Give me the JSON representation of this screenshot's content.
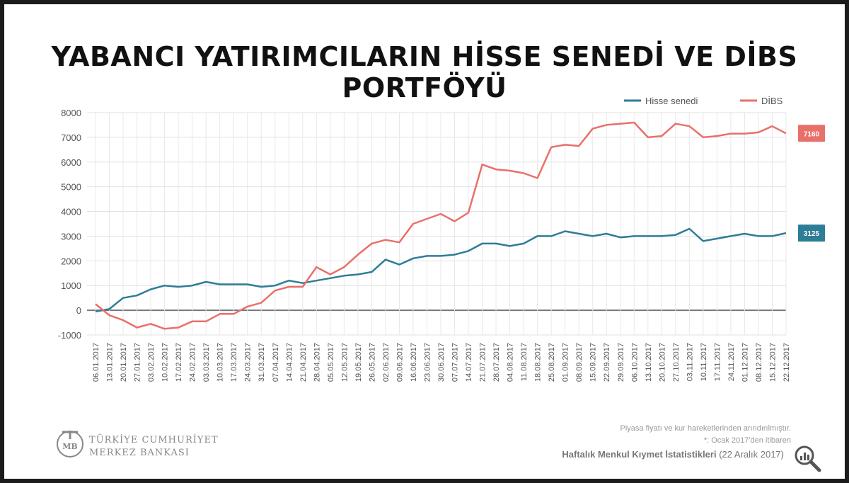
{
  "title": "YABANCI YATIRIMCILARIN HİSSE SENEDİ VE DİBS PORTFÖYÜ",
  "chart_data": {
    "type": "line",
    "title": "YABANCI YATIRIMCILARIN HİSSE SENEDİ VE DİBS PORTFÖYÜ",
    "xlabel": "",
    "ylabel": "",
    "ylim": [
      -1000,
      8000
    ],
    "yticks": [
      "8000",
      "7000",
      "6000",
      "5000",
      "4000",
      "3000",
      "2000",
      "1000",
      "0",
      "-1000"
    ],
    "grid": true,
    "legend_position": "top-right",
    "x": [
      "06.01.2017",
      "13.01.2017",
      "20.01.2017",
      "27.01.2017",
      "03.02.2017",
      "10.02.2017",
      "17.02.2017",
      "24.02.2017",
      "03.03.2017",
      "10.03.2017",
      "17.03.2017",
      "24.03.2017",
      "31.03.2017",
      "07.04.2017",
      "14.04.2017",
      "21.04.2017",
      "28.04.2017",
      "05.05.2017",
      "12.05.2017",
      "19.05.2017",
      "26.05.2017",
      "02.06.2017",
      "09.06.2017",
      "16.06.2017",
      "23.06.2017",
      "30.06.2017",
      "07.07.2017",
      "14.07.2017",
      "21.07.2017",
      "28.07.2017",
      "04.08.2017",
      "11.08.2017",
      "18.08.2017",
      "25.08.2017",
      "01.09.2017",
      "08.09.2017",
      "15.09.2017",
      "22.09.2017",
      "29.09.2017",
      "06.10.2017",
      "13.10.2017",
      "20.10.2017",
      "27.10.2017",
      "03.11.2017",
      "10.11.2017",
      "17.11.2017",
      "24.11.2017",
      "01.12.2017",
      "08.12.2017",
      "15.12.2017",
      "22.12.2017"
    ],
    "series": [
      {
        "name": "Hisse senedi",
        "color": "#2e7d96",
        "end_label": "3125",
        "values": [
          -50,
          50,
          500,
          600,
          850,
          1000,
          950,
          1000,
          1150,
          1050,
          1050,
          1050,
          950,
          1000,
          1200,
          1100,
          1200,
          1300,
          1400,
          1450,
          1550,
          2050,
          1850,
          2100,
          2200,
          2200,
          2250,
          2400,
          2700,
          2700,
          2600,
          2700,
          3000,
          3000,
          3200,
          3100,
          3000,
          3100,
          2950,
          3000,
          3000,
          3000,
          3050,
          3300,
          2800,
          2900,
          3000,
          3100,
          3000,
          3000,
          3125
        ]
      },
      {
        "name": "DİBS",
        "color": "#e8706a",
        "end_label": "7160",
        "values": [
          250,
          -200,
          -400,
          -700,
          -550,
          -750,
          -700,
          -450,
          -450,
          -150,
          -150,
          150,
          300,
          800,
          950,
          950,
          1750,
          1450,
          1750,
          2250,
          2700,
          2850,
          2750,
          3500,
          3700,
          3900,
          3600,
          3950,
          5900,
          5700,
          5650,
          5550,
          5350,
          6600,
          6700,
          6650,
          7350,
          7500,
          7550,
          7600,
          7000,
          7050,
          7550,
          7450,
          7000,
          7050,
          7150,
          7150,
          7200,
          7450,
          7160
        ]
      }
    ]
  },
  "logo": {
    "mark": "TCMB",
    "line1": "TÜRKİYE CUMHURİYET",
    "line2": "MERKEZ BANKASI"
  },
  "footnotes": {
    "line1": "Piyasa fiyatı ve kur hareketlerinden arındırılmıştır.",
    "line2": "*: Ocak 2017'den itibaren"
  },
  "source": {
    "bold": "Haftalık Menkul Kıymet İstatistikleri",
    "date": "(22 Aralık 2017)"
  },
  "icons": {
    "magnifier": "magnifier-chart-icon"
  }
}
